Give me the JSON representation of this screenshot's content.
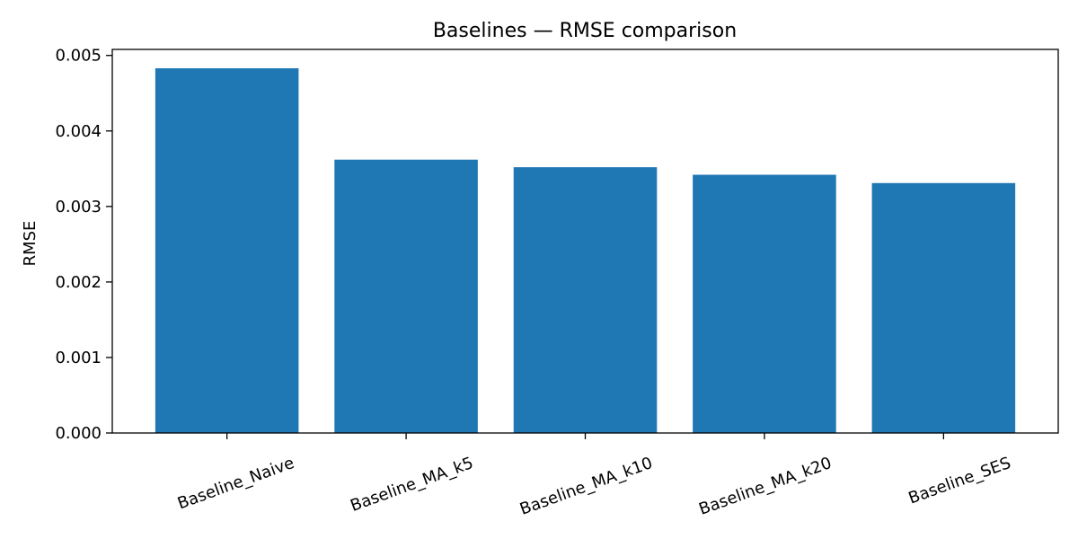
{
  "chart_data": {
    "type": "bar",
    "title": "Baselines — RMSE comparison",
    "xlabel": "",
    "ylabel": "RMSE",
    "categories": [
      "Baseline_Naive",
      "Baseline_MA_k5",
      "Baseline_MA_k10",
      "Baseline_MA_k20",
      "Baseline_SES"
    ],
    "values": [
      0.00483,
      0.00362,
      0.00352,
      0.00342,
      0.00331
    ],
    "ylim": [
      0,
      0.00508
    ],
    "yticks": [
      0,
      0.001,
      0.002,
      0.003,
      0.004,
      0.005
    ],
    "ytick_labels": [
      "0.000",
      "0.001",
      "0.002",
      "0.003",
      "0.004",
      "0.005"
    ],
    "xtick_rotation": 20,
    "grid": false,
    "legend": "none",
    "bar_color": "#1f77b4"
  }
}
